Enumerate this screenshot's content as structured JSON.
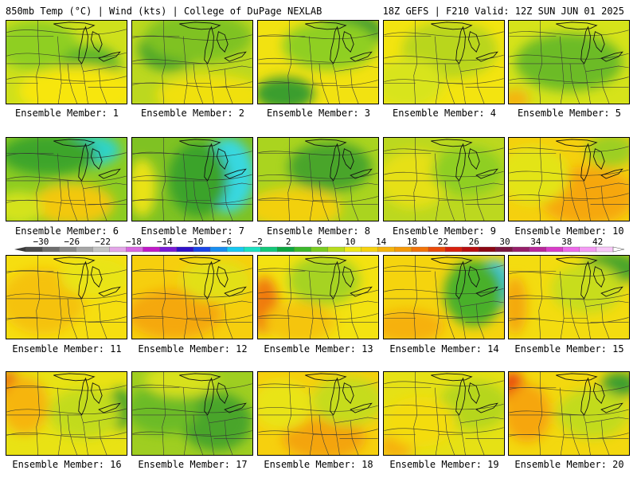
{
  "header": {
    "left": "850mb Temp (°C) | Wind (kts) | College of DuPage NEXLAB",
    "right": "18Z GEFS | F210 Valid: 12Z SUN JUN 01 2025"
  },
  "members": [
    {
      "label": "Ensemble Member: 1",
      "base": "#cfe01c",
      "blobs": [
        [
          "#8fcf22",
          0.25,
          0.3,
          0.35,
          0.3
        ],
        [
          "#5fb52a",
          0.7,
          0.55,
          0.25,
          0.25
        ],
        [
          "#f7e60f",
          0.6,
          0.85,
          0.5,
          0.3
        ]
      ]
    },
    {
      "label": "Ensemble Member: 2",
      "base": "#bcd81f",
      "blobs": [
        [
          "#4aa52c",
          0.3,
          0.35,
          0.25,
          0.25
        ],
        [
          "#7fc223",
          0.55,
          0.2,
          0.45,
          0.3
        ],
        [
          "#f0e010",
          0.65,
          0.9,
          0.45,
          0.25
        ]
      ]
    },
    {
      "label": "Ensemble Member: 3",
      "base": "#f2e211",
      "blobs": [
        [
          "#2e9630",
          0.75,
          0.15,
          0.3,
          0.25
        ],
        [
          "#3a9e2e",
          0.22,
          0.88,
          0.25,
          0.2
        ],
        [
          "#8fcf22",
          0.6,
          0.3,
          0.4,
          0.3
        ]
      ]
    },
    {
      "label": "Ensemble Member: 4",
      "base": "#f3e410",
      "blobs": [
        [
          "#b9d61e",
          0.55,
          0.35,
          0.4,
          0.35
        ],
        [
          "#d8e41a",
          0.2,
          0.75,
          0.3,
          0.3
        ]
      ]
    },
    {
      "label": "Ensemble Member: 5",
      "base": "#d6e31a",
      "blobs": [
        [
          "#2e9630",
          0.62,
          0.55,
          0.3,
          0.25
        ],
        [
          "#6cbb27",
          0.5,
          0.5,
          0.45,
          0.35
        ],
        [
          "#f5b20c",
          0.05,
          0.95,
          0.12,
          0.12
        ]
      ]
    },
    {
      "label": "Ensemble Member: 6",
      "base": "#8ccc22",
      "blobs": [
        [
          "#2fd3c8",
          0.65,
          0.15,
          0.3,
          0.2
        ],
        [
          "#3ea52c",
          0.35,
          0.2,
          0.4,
          0.25
        ],
        [
          "#f3c80d",
          0.55,
          0.8,
          0.35,
          0.25
        ],
        [
          "#d4e31a",
          0.1,
          0.85,
          0.2,
          0.2
        ]
      ]
    },
    {
      "label": "Ensemble Member: 7",
      "base": "#7fc223",
      "blobs": [
        [
          "#38d8e0",
          0.8,
          0.45,
          0.22,
          0.45
        ],
        [
          "#3aa32c",
          0.55,
          0.5,
          0.25,
          0.45
        ],
        [
          "#e9e215",
          0.08,
          0.6,
          0.12,
          0.35
        ]
      ]
    },
    {
      "label": "Ensemble Member: 8",
      "base": "#aad41f",
      "blobs": [
        [
          "#4aa52c",
          0.6,
          0.35,
          0.35,
          0.3
        ],
        [
          "#f2d00d",
          0.3,
          0.85,
          0.4,
          0.25
        ]
      ]
    },
    {
      "label": "Ensemble Member: 9",
      "base": "#bcd81f",
      "blobs": [
        [
          "#e6e016",
          0.25,
          0.5,
          0.3,
          0.35
        ],
        [
          "#8fcf22",
          0.7,
          0.4,
          0.3,
          0.3
        ]
      ]
    },
    {
      "label": "Ensemble Member: 10",
      "base": "#f5d00e",
      "blobs": [
        [
          "#f6a70b",
          0.65,
          0.7,
          0.4,
          0.35
        ],
        [
          "#e3e417",
          0.2,
          0.45,
          0.3,
          0.35
        ],
        [
          "#9ccf21",
          0.85,
          0.15,
          0.2,
          0.2
        ]
      ]
    },
    {
      "label": "Ensemble Member: 11",
      "base": "#f6de10",
      "blobs": [
        [
          "#f5c20d",
          0.3,
          0.55,
          0.35,
          0.4
        ],
        [
          "#e9e415",
          0.75,
          0.25,
          0.3,
          0.25
        ]
      ]
    },
    {
      "label": "Ensemble Member: 12",
      "base": "#f6cf0e",
      "blobs": [
        [
          "#f5a80b",
          0.35,
          0.7,
          0.4,
          0.3
        ],
        [
          "#e2e017",
          0.7,
          0.3,
          0.3,
          0.25
        ]
      ]
    },
    {
      "label": "Ensemble Member: 13",
      "base": "#f3e211",
      "blobs": [
        [
          "#f07a08",
          0.05,
          0.6,
          0.12,
          0.35
        ],
        [
          "#a6d320",
          0.55,
          0.3,
          0.3,
          0.3
        ],
        [
          "#f5c50d",
          0.35,
          0.8,
          0.3,
          0.25
        ]
      ]
    },
    {
      "label": "Ensemble Member: 14",
      "base": "#f5d40e",
      "blobs": [
        [
          "#38c6e8",
          0.92,
          0.35,
          0.15,
          0.3
        ],
        [
          "#4ab02a",
          0.75,
          0.45,
          0.25,
          0.4
        ],
        [
          "#f6b10b",
          0.2,
          0.85,
          0.3,
          0.2
        ]
      ]
    },
    {
      "label": "Ensemble Member: 15",
      "base": "#f3dc10",
      "blobs": [
        [
          "#4aa52c",
          0.85,
          0.15,
          0.25,
          0.2
        ],
        [
          "#f4a90b",
          0.05,
          0.6,
          0.1,
          0.35
        ],
        [
          "#c8dd1c",
          0.65,
          0.4,
          0.3,
          0.3
        ]
      ]
    },
    {
      "label": "Ensemble Member: 16",
      "base": "#e9e214",
      "blobs": [
        [
          "#e84a0a",
          0.03,
          0.2,
          0.1,
          0.2
        ],
        [
          "#f6b50c",
          0.15,
          0.4,
          0.2,
          0.35
        ],
        [
          "#3fa22c",
          0.95,
          0.45,
          0.12,
          0.25
        ],
        [
          "#c2db1d",
          0.65,
          0.5,
          0.3,
          0.3
        ]
      ]
    },
    {
      "label": "Ensemble Member: 17",
      "base": "#9fce21",
      "blobs": [
        [
          "#4aa52c",
          0.7,
          0.6,
          0.3,
          0.35
        ],
        [
          "#6cbb27",
          0.25,
          0.45,
          0.3,
          0.3
        ],
        [
          "#d8e11a",
          0.4,
          0.1,
          0.3,
          0.2
        ]
      ]
    },
    {
      "label": "Ensemble Member: 18",
      "base": "#f6d00e",
      "blobs": [
        [
          "#f4a40b",
          0.55,
          0.8,
          0.35,
          0.25
        ],
        [
          "#c6dc1d",
          0.75,
          0.35,
          0.3,
          0.3
        ],
        [
          "#e9e415",
          0.2,
          0.4,
          0.25,
          0.3
        ]
      ]
    },
    {
      "label": "Ensemble Member: 19",
      "base": "#e6e115",
      "blobs": [
        [
          "#f6b00c",
          0.1,
          0.9,
          0.15,
          0.15
        ],
        [
          "#b6d61e",
          0.75,
          0.4,
          0.3,
          0.3
        ],
        [
          "#f4dc10",
          0.3,
          0.6,
          0.3,
          0.3
        ]
      ]
    },
    {
      "label": "Ensemble Member: 20",
      "base": "#f3d80f",
      "blobs": [
        [
          "#e8400a",
          0.03,
          0.2,
          0.1,
          0.2
        ],
        [
          "#f6a60b",
          0.15,
          0.5,
          0.2,
          0.35
        ],
        [
          "#3a9e2e",
          0.92,
          0.15,
          0.15,
          0.15
        ],
        [
          "#c2db1d",
          0.7,
          0.5,
          0.3,
          0.3
        ]
      ]
    }
  ],
  "colorbar": {
    "ticks": [
      "-30",
      "-26",
      "-22",
      "-18",
      "-14",
      "-10",
      "-6",
      "-2",
      "2",
      "6",
      "10",
      "14",
      "18",
      "22",
      "26",
      "30",
      "34",
      "38",
      "42"
    ],
    "colors": [
      "#4d4d4d",
      "#6e6e6e",
      "#8a8a8a",
      "#a6a6a6",
      "#c4c4c4",
      "#e3a6e8",
      "#d866e0",
      "#c01ac8",
      "#7a1ad6",
      "#3010c8",
      "#1a45e8",
      "#1a8ef0",
      "#19c8f0",
      "#1ce0c0",
      "#14c87a",
      "#0ea640",
      "#3cb82c",
      "#7ccc22",
      "#b8dc1d",
      "#eee818",
      "#f6d20f",
      "#f6b40c",
      "#f59a0a",
      "#f2740a",
      "#ea4a0a",
      "#d8200e",
      "#b80e10",
      "#8c0814",
      "#7a1640",
      "#96206a",
      "#b8289a",
      "#d83cc8",
      "#ee6aea",
      "#f49af4",
      "#f8c8f8"
    ]
  }
}
